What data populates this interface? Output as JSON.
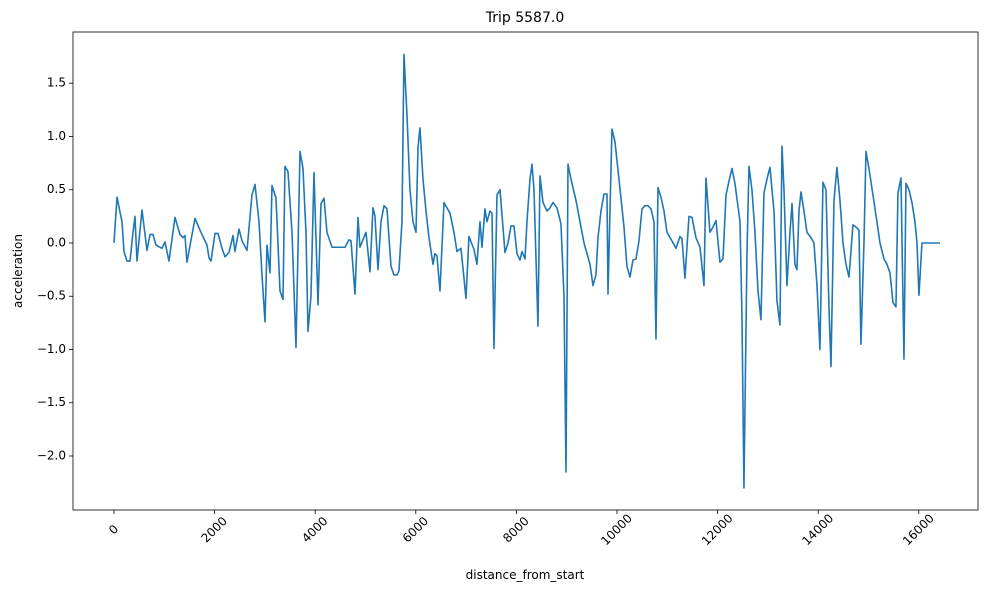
{
  "chart_data": {
    "type": "line",
    "title": "Trip 5587.0",
    "x_label": "distance_from_start",
    "y_label": "acceleration",
    "color": "#1f77b4",
    "x": [
      0,
      60,
      159,
      199,
      258,
      318,
      378,
      417,
      457,
      557,
      656,
      716,
      775,
      835,
      954,
      1014,
      1093,
      1213,
      1312,
      1372,
      1411,
      1451,
      1610,
      1710,
      1849,
      1889,
      1928,
      2008,
      2068,
      2147,
      2207,
      2286,
      2366,
      2405,
      2485,
      2545,
      2644,
      2743,
      2803,
      2883,
      2942,
      3002,
      3042,
      3101,
      3141,
      3221,
      3300,
      3360,
      3399,
      3459,
      3539,
      3618,
      3698,
      3757,
      3817,
      3857,
      3916,
      3976,
      4056,
      4115,
      4175,
      4234,
      4334,
      4592,
      4672,
      4712,
      4791,
      4851,
      4890,
      5010,
      5089,
      5149,
      5189,
      5248,
      5308,
      5368,
      5427,
      5507,
      5566,
      5626,
      5666,
      5725,
      5765,
      5825,
      5884,
      5944,
      6004,
      6044,
      6083,
      6143,
      6203,
      6262,
      6342,
      6381,
      6421,
      6481,
      6560,
      6620,
      6680,
      6759,
      6819,
      6898,
      6958,
      6998,
      7057,
      7157,
      7216,
      7276,
      7316,
      7375,
      7415,
      7475,
      7515,
      7554,
      7614,
      7674,
      7773,
      7833,
      7892,
      7952,
      8012,
      8071,
      8111,
      8171,
      8210,
      8270,
      8310,
      8350,
      8429,
      8469,
      8529,
      8608,
      8668,
      8727,
      8807,
      8886,
      8946,
      8986,
      9026,
      9085,
      9185,
      9264,
      9344,
      9463,
      9523,
      9582,
      9622,
      9682,
      9741,
      9801,
      9821,
      9900,
      9960,
      10039,
      10139,
      10198,
      10258,
      10318,
      10377,
      10437,
      10497,
      10556,
      10616,
      10676,
      10735,
      10775,
      10815,
      10874,
      10934,
      10994,
      11093,
      11173,
      11252,
      11292,
      11351,
      11431,
      11491,
      11570,
      11650,
      11729,
      11769,
      11848,
      11908,
      11968,
      12047,
      12107,
      12167,
      12226,
      12286,
      12345,
      12445,
      12485,
      12524,
      12584,
      12624,
      12683,
      12743,
      12803,
      12862,
      12922,
      12982,
      13041,
      13121,
      13180,
      13240,
      13280,
      13320,
      13379,
      13439,
      13479,
      13538,
      13578,
      13618,
      13658,
      13717,
      13777,
      13856,
      13916,
      13976,
      14035,
      14095,
      14155,
      14214,
      14254,
      14314,
      14373,
      14433,
      14493,
      14552,
      14612,
      14691,
      14751,
      14811,
      14850,
      14910,
      14950,
      15009,
      15089,
      15168,
      15228,
      15308,
      15367,
      15427,
      15487,
      15546,
      15586,
      15646,
      15705,
      15745,
      15805,
      15864,
      15924,
      15964,
      16003,
      16063,
      16123,
      16421
    ],
    "values": [
      0,
      0.43,
      0.2,
      -0.08,
      -0.17,
      -0.17,
      0.1,
      0.25,
      -0.17,
      0.31,
      -0.07,
      0.08,
      0.08,
      -0.02,
      -0.05,
      0.01,
      -0.17,
      0.24,
      0.08,
      0.05,
      0.07,
      -0.18,
      0.23,
      0.12,
      -0.02,
      -0.14,
      -0.17,
      0.09,
      0.09,
      -0.05,
      -0.13,
      -0.09,
      0.07,
      -0.08,
      0.13,
      0.02,
      -0.07,
      0.45,
      0.55,
      0.2,
      -0.3,
      -0.74,
      -0.02,
      -0.28,
      0.54,
      0.42,
      -0.45,
      -0.53,
      0.72,
      0.67,
      0.1,
      -0.98,
      0.86,
      0.7,
      0.1,
      -0.83,
      -0.5,
      0.66,
      -0.58,
      0.37,
      0.42,
      0.1,
      -0.04,
      -0.04,
      0.03,
      0.02,
      -0.48,
      0.24,
      -0.04,
      0.1,
      -0.27,
      0.33,
      0.25,
      -0.25,
      0.2,
      0.35,
      0.32,
      -0.22,
      -0.3,
      -0.3,
      -0.26,
      0.2,
      1.77,
      1.2,
      0.5,
      0.2,
      0.1,
      0.9,
      1.08,
      0.6,
      0.3,
      0.05,
      -0.2,
      -0.1,
      -0.12,
      -0.45,
      0.38,
      0.33,
      0.28,
      0.1,
      -0.08,
      -0.05,
      -0.33,
      -0.52,
      0.06,
      -0.06,
      -0.2,
      0.2,
      -0.04,
      0.32,
      0.2,
      0.3,
      0.28,
      -0.99,
      0.45,
      0.5,
      -0.09,
      0,
      0.16,
      0.16,
      -0.1,
      -0.16,
      -0.08,
      -0.15,
      0.2,
      0.6,
      0.74,
      0.5,
      -0.78,
      0.63,
      0.38,
      0.3,
      0.33,
      0.38,
      0.33,
      0.18,
      -0.5,
      -2.15,
      0.74,
      0.6,
      0.4,
      0.2,
      0,
      -0.2,
      -0.4,
      -0.3,
      0.05,
      0.3,
      0.46,
      0.46,
      -0.48,
      1.07,
      0.95,
      0.6,
      0.15,
      -0.22,
      -0.32,
      -0.16,
      -0.15,
      0.02,
      0.32,
      0.35,
      0.35,
      0.32,
      0.2,
      -0.9,
      0.52,
      0.43,
      0.3,
      0.1,
      0.02,
      -0.05,
      0.06,
      0.04,
      -0.33,
      0.25,
      0.24,
      0.05,
      -0.04,
      -0.4,
      0.61,
      0.1,
      0.15,
      0.21,
      -0.18,
      -0.15,
      0.45,
      0.58,
      0.7,
      0.56,
      0.2,
      -0.7,
      -2.3,
      -0.1,
      0.72,
      0.5,
      0.1,
      -0.45,
      -0.72,
      0.47,
      0.6,
      0.71,
      0.3,
      -0.54,
      -0.77,
      0.91,
      0.5,
      -0.4,
      0.1,
      0.37,
      -0.2,
      -0.25,
      0.3,
      0.48,
      0.3,
      0.1,
      0.05,
      0,
      -0.4,
      -1,
      0.57,
      0.5,
      -0.6,
      -1.16,
      0.4,
      0.71,
      0.4,
      0,
      -0.2,
      -0.32,
      0.17,
      0.15,
      0.12,
      -0.95,
      0,
      0.86,
      0.7,
      0.45,
      0.2,
      0,
      -0.15,
      -0.2,
      -0.28,
      -0.56,
      -0.6,
      0.47,
      0.61,
      -1.09,
      0.56,
      0.5,
      0.38,
      0.2,
      0,
      -0.49,
      0,
      0,
      0
    ],
    "xlim": [
      -815,
      17177
    ],
    "ylim": [
      -2.507,
      1.981
    ],
    "xticks": [
      0,
      2000,
      4000,
      6000,
      8000,
      10000,
      12000,
      14000,
      16000
    ],
    "yticks": [
      {
        "value": -2,
        "label": "−2.0"
      },
      {
        "value": -1.5,
        "label": "−1.5"
      },
      {
        "value": -1,
        "label": "−1.0"
      },
      {
        "value": -0.5,
        "label": "−0.5"
      },
      {
        "value": 0,
        "label": "0.0"
      },
      0.5,
      {
        "value": 1,
        "label": "1.0"
      },
      1.5
    ]
  }
}
